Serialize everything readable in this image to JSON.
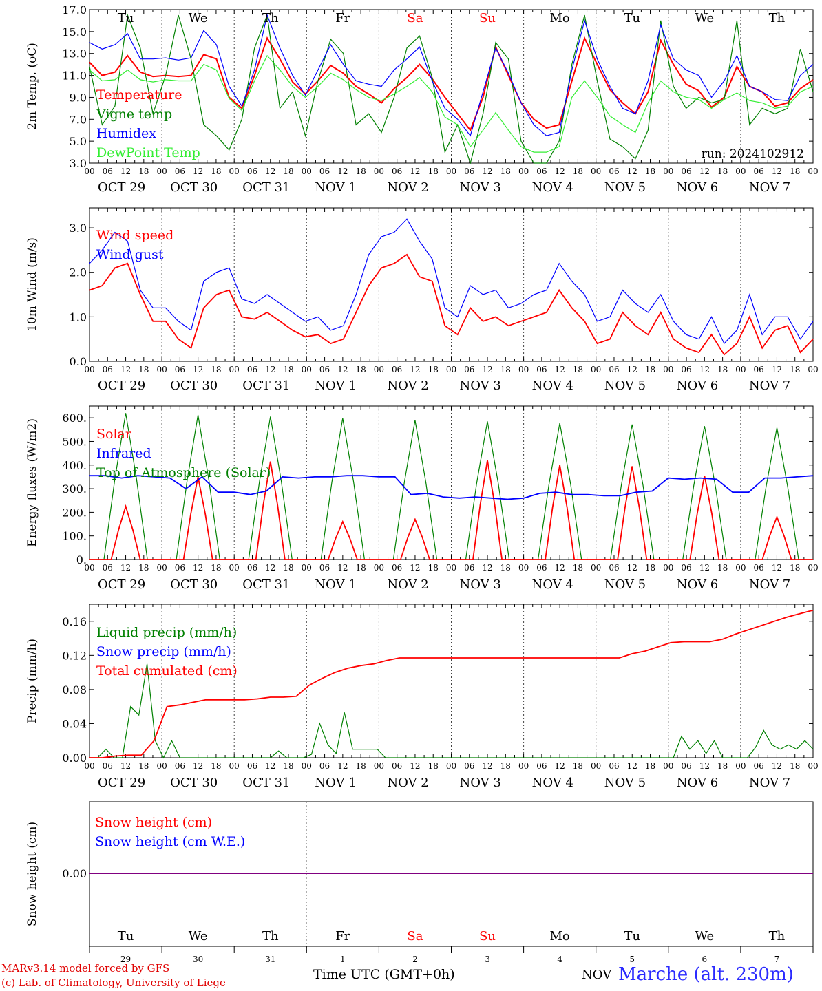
{
  "footer": {
    "credit_line1": "MARv3.14 model forced by GFS",
    "credit_line2": "(c) Lab. of Climatology, University of Liege",
    "x_axis_title": "Time UTC (GMT+0h)",
    "month_label": "NOV",
    "station": "Marche (alt. 230m)"
  },
  "colors": {
    "red": "#ff0000",
    "green": "#008000",
    "blue": "#0000ff",
    "lightgreen": "#33ee33",
    "weekend": "#ff0000",
    "snowline": "#800080"
  },
  "chart_data": [
    {
      "type": "line",
      "ylabel": "2m Temp. (oC)",
      "ylim": [
        3.0,
        17.0
      ],
      "yticks": [
        "3.0",
        "5.0",
        "7.0",
        "9.0",
        "11.0",
        "13.0",
        "15.0",
        "17.0"
      ],
      "annotation": "run: 2024102912",
      "legend_placement": "top-left",
      "x_hours_step": 6,
      "series": [
        {
          "name": "Temperature",
          "color": "#ff0000",
          "values": [
            12.2,
            11.0,
            11.3,
            12.8,
            11.3,
            10.9,
            11.0,
            10.9,
            11.0,
            12.9,
            12.5,
            9.0,
            8.0,
            11.0,
            14.4,
            12.5,
            10.4,
            9.3,
            10.5,
            11.9,
            11.2,
            10.0,
            9.3,
            8.5,
            9.8,
            10.8,
            12.0,
            10.7,
            9.0,
            7.5,
            6.0,
            9.0,
            13.6,
            11.0,
            8.5,
            7.0,
            6.2,
            6.5,
            10.5,
            14.4,
            12.0,
            9.7,
            8.5,
            7.5,
            9.5,
            14.2,
            12.0,
            10.2,
            9.6,
            8.1,
            9.0,
            11.8,
            10.0,
            9.5,
            8.2,
            8.5,
            9.8,
            10.6
          ]
        },
        {
          "name": "Vigne temp",
          "color": "#008000",
          "values": [
            11.8,
            6.5,
            8.2,
            16.5,
            13.5,
            7.5,
            11.0,
            16.5,
            12.5,
            6.5,
            5.5,
            4.2,
            7.0,
            13.5,
            16.5,
            8.0,
            9.5,
            5.5,
            10.5,
            14.3,
            13.0,
            6.5,
            7.5,
            5.8,
            9.0,
            13.5,
            14.6,
            10.8,
            4.0,
            6.5,
            2.8,
            7.5,
            14.0,
            12.5,
            5.0,
            3.0,
            2.5,
            5.0,
            12.0,
            16.5,
            10.5,
            5.2,
            4.5,
            3.4,
            6.0,
            16.0,
            10.0,
            8.0,
            9.0,
            8.5,
            8.8,
            16.0,
            6.5,
            8.0,
            7.5,
            8.0,
            13.4,
            9.5
          ]
        },
        {
          "name": "Humidex",
          "color": "#0000ff",
          "values": [
            14.0,
            13.4,
            13.8,
            14.8,
            12.5,
            12.5,
            12.6,
            12.4,
            12.6,
            15.1,
            13.8,
            10.0,
            8.2,
            11.5,
            16.5,
            13.5,
            11.0,
            9.2,
            11.5,
            13.8,
            12.0,
            10.5,
            10.2,
            10.0,
            11.5,
            12.5,
            13.6,
            10.5,
            8.0,
            7.0,
            5.5,
            9.5,
            13.5,
            11.2,
            8.5,
            6.5,
            5.5,
            5.8,
            11.5,
            16.0,
            12.5,
            10.0,
            8.0,
            7.5,
            10.5,
            15.6,
            12.5,
            11.5,
            11.0,
            9.0,
            10.5,
            12.8,
            10.0,
            9.5,
            8.8,
            8.7,
            11.0,
            12.0
          ]
        },
        {
          "name": "DewPoint Temp",
          "color": "#33ee33",
          "values": [
            11.5,
            10.5,
            10.6,
            11.5,
            10.6,
            10.4,
            10.6,
            10.5,
            10.5,
            12.0,
            11.5,
            8.9,
            7.8,
            10.5,
            12.8,
            11.5,
            10.0,
            9.0,
            10.0,
            11.2,
            10.6,
            9.7,
            9.0,
            8.7,
            9.3,
            10.0,
            10.8,
            9.5,
            7.2,
            6.5,
            4.5,
            6.0,
            7.6,
            6.0,
            4.5,
            4.0,
            4.0,
            4.5,
            9.0,
            10.5,
            9.0,
            7.3,
            6.5,
            5.8,
            8.5,
            10.5,
            9.5,
            9.0,
            8.8,
            8.0,
            8.8,
            9.4,
            8.7,
            8.5,
            8.0,
            8.2,
            9.5,
            10.0
          ]
        }
      ]
    },
    {
      "type": "line",
      "ylabel": "10m Wind (m/s)",
      "ylim": [
        0.0,
        3.45
      ],
      "yticks": [
        "0.0",
        "1.0",
        "2.0",
        "3.0"
      ],
      "legend_placement": "top-left",
      "x_hours_step": 6,
      "series": [
        {
          "name": "Wind speed",
          "color": "#ff0000",
          "values": [
            1.6,
            1.7,
            2.1,
            2.2,
            1.5,
            0.9,
            0.9,
            0.5,
            0.3,
            1.2,
            1.5,
            1.6,
            1.0,
            0.95,
            1.1,
            0.9,
            0.7,
            0.55,
            0.6,
            0.4,
            0.5,
            1.1,
            1.7,
            2.1,
            2.2,
            2.4,
            1.9,
            1.8,
            0.8,
            0.6,
            1.2,
            0.9,
            1.0,
            0.8,
            0.9,
            1.0,
            1.1,
            1.6,
            1.2,
            0.9,
            0.4,
            0.5,
            1.1,
            0.8,
            0.6,
            1.1,
            0.5,
            0.3,
            0.2,
            0.6,
            0.15,
            0.4,
            1.0,
            0.3,
            0.7,
            0.8,
            0.2,
            0.5
          ]
        },
        {
          "name": "Wind gust",
          "color": "#0000ff",
          "values": [
            2.2,
            2.5,
            2.9,
            2.7,
            1.6,
            1.2,
            1.2,
            0.9,
            0.7,
            1.8,
            2.0,
            2.1,
            1.4,
            1.3,
            1.5,
            1.3,
            1.1,
            0.9,
            1.0,
            0.7,
            0.8,
            1.5,
            2.4,
            2.8,
            2.9,
            3.2,
            2.7,
            2.3,
            1.2,
            1.0,
            1.7,
            1.5,
            1.6,
            1.2,
            1.3,
            1.5,
            1.6,
            2.2,
            1.8,
            1.5,
            0.9,
            1.0,
            1.6,
            1.3,
            1.1,
            1.5,
            0.9,
            0.6,
            0.5,
            1.0,
            0.4,
            0.7,
            1.5,
            0.6,
            1.0,
            1.0,
            0.5,
            0.9
          ]
        }
      ]
    },
    {
      "type": "line",
      "ylabel": "Energy fluxes (W/m2)",
      "ylim": [
        0,
        650
      ],
      "yticks": [
        "0.",
        "100.",
        "200.",
        "300.",
        "400.",
        "500.",
        "600."
      ],
      "legend_placement": "top-left",
      "x_hours_step": 6,
      "series": [
        {
          "name": "Solar",
          "color": "#ff0000",
          "peaks": [
            225,
            350,
            415,
            160,
            170,
            420,
            400,
            395,
            355,
            180
          ]
        },
        {
          "name": "Infrared",
          "color": "#0000ff",
          "values": [
            355,
            355,
            345,
            355,
            350,
            345,
            300,
            350,
            285,
            285,
            275,
            290,
            350,
            345,
            350,
            350,
            355,
            355,
            350,
            350,
            275,
            280,
            265,
            260,
            265,
            260,
            255,
            260,
            280,
            285,
            275,
            275,
            270,
            270,
            285,
            290,
            345,
            340,
            345,
            340,
            285,
            285,
            345,
            345,
            350,
            355
          ]
        },
        {
          "name": "Top of Atmosphere (Solar)",
          "color": "#008000",
          "peaks": [
            620,
            612,
            605,
            598,
            590,
            585,
            578,
            572,
            565,
            558
          ]
        }
      ]
    },
    {
      "type": "line",
      "ylabel": "Precip (mm/h)",
      "ylim": [
        0.0,
        0.18
      ],
      "yticks": [
        "0.00",
        "0.04",
        "0.08",
        "0.12",
        "0.16"
      ],
      "legend_placement": "top-left",
      "x_hours_step": 6,
      "series": [
        {
          "name": "Liquid precip (mm/h)",
          "color": "#008000",
          "values": [
            0.0,
            0.0,
            0.01,
            0.0,
            0.0,
            0.06,
            0.05,
            0.11,
            0.02,
            0.0,
            0.02,
            0.0,
            0.0,
            0.0,
            0.0,
            0.0,
            0.0,
            0.0,
            0.0,
            0.0,
            0.0,
            0.0,
            0.0,
            0.008,
            0.0,
            0.0,
            0.0,
            0.004,
            0.04,
            0.015,
            0.005,
            0.053,
            0.01,
            0.01,
            0.01,
            0.01,
            0.0,
            0.0,
            0.0,
            0.0,
            0.0,
            0.0,
            0.0,
            0.0,
            0.0,
            0.0,
            0.0,
            0.0,
            0.0,
            0.0,
            0.0,
            0.0,
            0.0,
            0.0,
            0.0,
            0.0,
            0.0,
            0.0,
            0.0,
            0.0,
            0.0,
            0.0,
            0.0,
            0.0,
            0.0,
            0.0,
            0.0,
            0.0,
            0.0,
            0.0,
            0.0,
            0.0,
            0.025,
            0.01,
            0.02,
            0.005,
            0.02,
            0.0,
            0.0,
            0.0,
            0.0,
            0.012,
            0.032,
            0.015,
            0.01,
            0.015,
            0.01,
            0.02,
            0.01
          ]
        },
        {
          "name": "Snow precip (mm/h)",
          "color": "#0000ff",
          "values": []
        },
        {
          "name": "Total cumulated (cm)",
          "color": "#ff0000",
          "values": [
            0.0,
            0.0,
            0.002,
            0.003,
            0.003,
            0.02,
            0.06,
            0.062,
            0.065,
            0.068,
            0.068,
            0.068,
            0.068,
            0.069,
            0.071,
            0.071,
            0.072,
            0.085,
            0.093,
            0.1,
            0.105,
            0.108,
            0.11,
            0.114,
            0.117,
            0.117,
            0.117,
            0.117,
            0.117,
            0.117,
            0.117,
            0.117,
            0.117,
            0.117,
            0.117,
            0.117,
            0.117,
            0.117,
            0.117,
            0.117,
            0.117,
            0.117,
            0.122,
            0.125,
            0.13,
            0.135,
            0.136,
            0.136,
            0.136,
            0.139,
            0.145,
            0.15,
            0.155,
            0.16,
            0.165,
            0.169,
            0.173
          ]
        }
      ]
    },
    {
      "type": "line",
      "ylabel": "Snow height (cm)",
      "yticks": [
        "0.00"
      ],
      "legend_placement": "top-left",
      "series": [
        {
          "name": "Snow height (cm)",
          "color": "#ff0000",
          "values": [
            0,
            0
          ]
        },
        {
          "name": "Snow height (cm W.E.)",
          "color": "#0000ff",
          "values": [
            0,
            0
          ]
        }
      ]
    }
  ],
  "weekdays": [
    "Tu",
    "We",
    "Th",
    "Fr",
    "Sa",
    "Su",
    "Mo",
    "Tu",
    "We",
    "Th"
  ],
  "weekend_flags": [
    false,
    false,
    false,
    false,
    true,
    true,
    false,
    false,
    false,
    false
  ],
  "date_labels": [
    "OCT 29",
    "OCT 30",
    "OCT 31",
    "NOV  1",
    "NOV  2",
    "NOV  3",
    "NOV  4",
    "NOV  5",
    "NOV  6",
    "NOV  7"
  ],
  "day_numbers": [
    "29",
    "30",
    "31",
    "1",
    "2",
    "3",
    "4",
    "5",
    "6",
    "7"
  ],
  "hour_ticks": [
    "00",
    "06",
    "12",
    "18"
  ],
  "hour_end_tick": "00"
}
